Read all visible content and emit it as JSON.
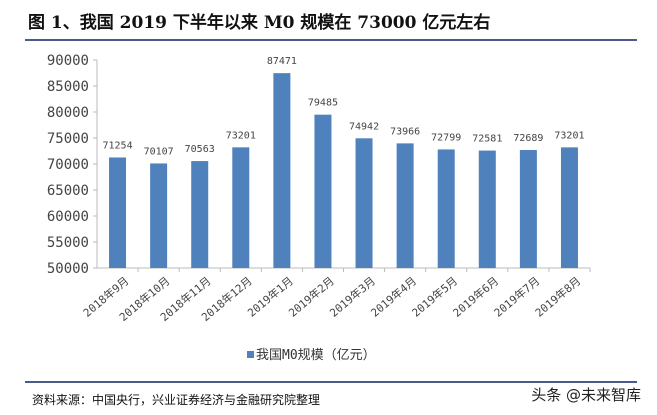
{
  "title": "图 1、我国 2019 下半年以来 M0 规模在 73000 亿元左右",
  "source": "资料来源：中国央行，兴业证券经济与金融研究院整理",
  "watermark": "头条 @未来智库",
  "chart_data": {
    "type": "bar",
    "title": "图 1、我国 2019 下半年以来 M0 规模在 73000 亿元左右",
    "categories": [
      "2018年9月",
      "2018年10月",
      "2018年11月",
      "2018年12月",
      "2019年1月",
      "2019年2月",
      "2019年3月",
      "2019年4月",
      "2019年5月",
      "2019年6月",
      "2019年7月",
      "2019年8月"
    ],
    "series": [
      {
        "name": "我国M0规模（亿元）",
        "values": [
          71254,
          70107,
          70563,
          73201,
          87471,
          79485,
          74942,
          73966,
          72799,
          72581,
          72689,
          73201
        ],
        "color": "#4f81bd"
      }
    ],
    "ylim": [
      50000,
      90000
    ],
    "yticks": [
      50000,
      55000,
      60000,
      65000,
      70000,
      75000,
      80000,
      85000,
      90000
    ],
    "data_labels": true,
    "grid": false,
    "legend": "bottom"
  }
}
